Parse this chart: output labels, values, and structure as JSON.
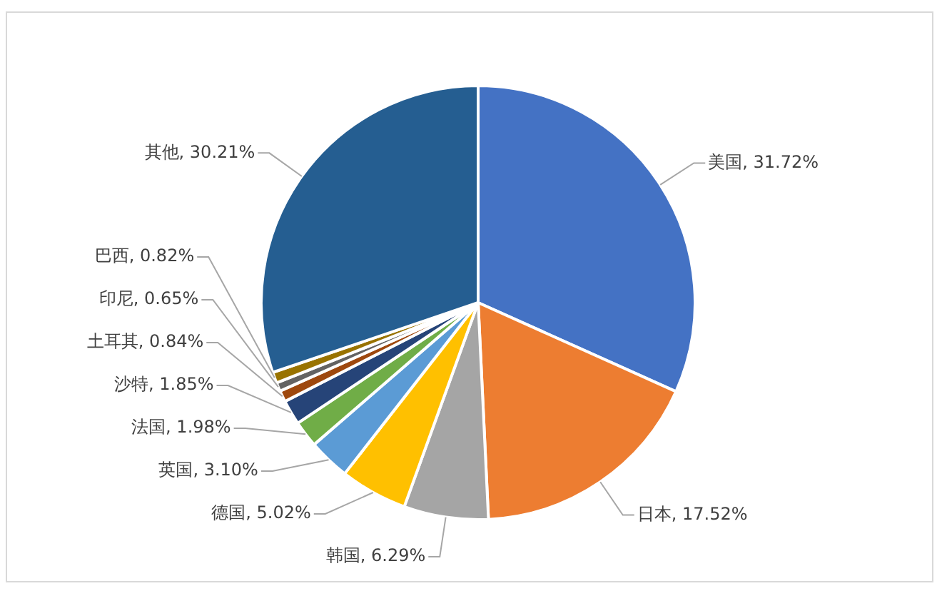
{
  "chart_data": {
    "type": "pie",
    "categories": [
      "美国",
      "日本",
      "韩国",
      "德国",
      "英国",
      "法国",
      "沙特",
      "土耳其",
      "印尼",
      "巴西",
      "其他"
    ],
    "values": [
      31.72,
      17.52,
      6.29,
      5.02,
      3.1,
      1.98,
      1.85,
      0.84,
      0.65,
      0.82,
      30.21
    ],
    "value_labels": [
      "31.72%",
      "17.52%",
      "6.29%",
      "5.02%",
      "3.10%",
      "1.98%",
      "1.85%",
      "0.84%",
      "0.65%",
      "0.82%",
      "30.21%"
    ],
    "colors": [
      "#4472c4",
      "#ed7d31",
      "#a5a5a5",
      "#ffc000",
      "#5b9bd5",
      "#70ad47",
      "#264478",
      "#9e480e",
      "#636363",
      "#997300",
      "#255e91"
    ],
    "legend": false
  }
}
